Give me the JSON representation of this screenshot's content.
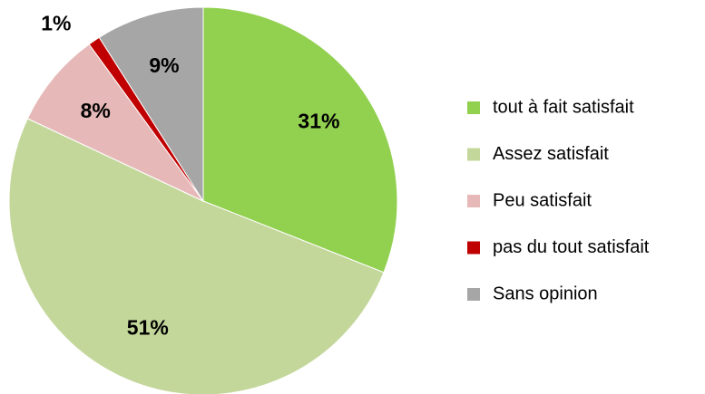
{
  "chart_data": {
    "type": "pie",
    "categories": [
      "tout à fait satisfait",
      "Assez satisfait",
      "Peu satisfait",
      "pas du tout satisfait",
      "Sans opinion"
    ],
    "values": [
      31,
      51,
      8,
      1,
      9
    ],
    "value_labels": [
      "31%",
      "51%",
      "8%",
      "1%",
      "9%"
    ],
    "colors": [
      "#92d050",
      "#c4d79b",
      "#e6b9b8",
      "#c00000",
      "#a6a6a6"
    ],
    "legend": "right"
  }
}
